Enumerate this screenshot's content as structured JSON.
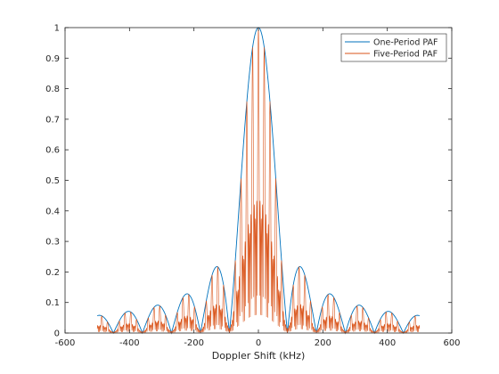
{
  "chart_data": {
    "type": "line",
    "title": "",
    "xlabel": "Doppler Shift (kHz)",
    "ylabel": "",
    "xlim": [
      -600,
      600
    ],
    "ylim": [
      0,
      1
    ],
    "xticks": [
      -600,
      -400,
      -200,
      0,
      200,
      400,
      600
    ],
    "yticks": [
      0,
      0.1,
      0.2,
      0.3,
      0.4,
      0.5,
      0.6,
      0.7,
      0.8,
      0.9,
      1
    ],
    "x_range": [
      -500,
      500
    ],
    "grid": false,
    "legend_position": "top-right",
    "series": [
      {
        "name": "One-Period PAF",
        "color": "#0072BD",
        "style": "sinc envelope, main lobe peak 1 at 0 kHz, nulls every ~90 kHz",
        "x": [
          -500,
          -455,
          -410,
          -365,
          -320,
          -275,
          -230,
          -185,
          -140,
          -95,
          -50,
          -25,
          0,
          25,
          50,
          95,
          140,
          185,
          230,
          275,
          320,
          365,
          410,
          455,
          500
        ],
        "values": [
          0.09,
          0.0,
          0.095,
          0.0,
          0.11,
          0.0,
          0.14,
          0.0,
          0.22,
          0.0,
          0.63,
          0.9,
          1.0,
          0.9,
          0.63,
          0.0,
          0.22,
          0.0,
          0.14,
          0.0,
          0.11,
          0.0,
          0.095,
          0.0,
          0.09
        ]
      },
      {
        "name": "Five-Period PAF",
        "color": "#D95319",
        "style": "rapidly oscillating spikes beneath One-Period envelope, ~18 kHz spacing",
        "x": [
          -500,
          -400,
          -300,
          -200,
          -130,
          -100,
          -50,
          -25,
          0,
          25,
          50,
          100,
          130,
          200,
          300,
          400,
          500
        ],
        "values": [
          0.06,
          0.07,
          0.09,
          0.12,
          0.21,
          0.08,
          0.55,
          0.85,
          1.0,
          0.85,
          0.55,
          0.08,
          0.21,
          0.12,
          0.09,
          0.07,
          0.06
        ]
      }
    ]
  }
}
